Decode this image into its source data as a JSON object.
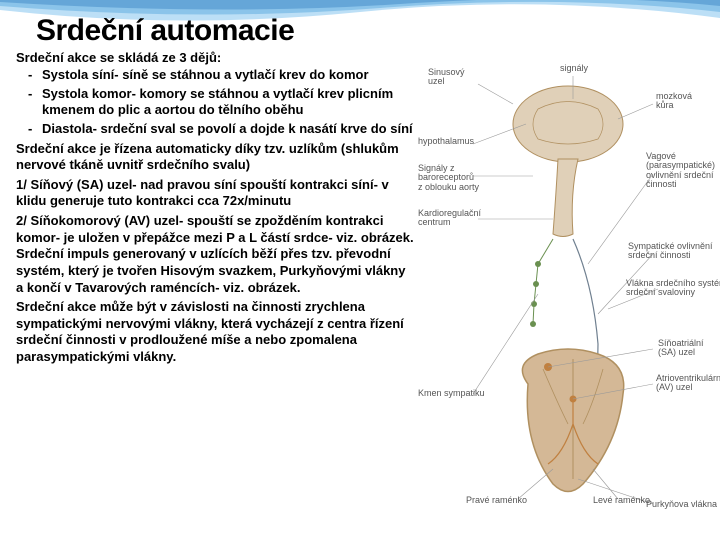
{
  "title": "Srdeční automacie",
  "subtitle": "Srdeční akce se skládá ze 3 dějů:",
  "bullets": [
    "Systola síní- síně se stáhnou a vytlačí krev do komor",
    "Systola komor- komory se stáhnou a vytlačí krev plicním kmenem do plic a aortou do tělního oběhu",
    "Diastola- srdeční sval se povolí a dojde k nasátí krve do síní"
  ],
  "paragraphs": [
    "Srdeční akce je řízena automaticky díky tzv. uzlíkům (shlukům nervové tkáně uvnitř srdečního svalu)",
    "1/ Síňový (SA) uzel- nad pravou síní spouští kontrakci síní- v klidu generuje tuto kontrakci cca 72x/minutu",
    "2/ Síňokomorový (AV) uzel- spouští se zpožděním kontrakci komor- je uložen v přepážce mezi P a L částí srdce- viz. obrázek. Srdeční impuls generovaný v uzlících běží přes tzv. převodní systém, který je tvořen Hisovým svazkem, Purkyňovými vlákny a končí v Tavarových raméncích- viz. obrázek.",
    "Srdeční akce může být v závislosti na činnosti zrychlena sympatickými nervovými vlákny, která vycházejí z centra řízení srdeční činnosti v prodloužené míše a nebo zpomalena parasympatickými vlákny."
  ],
  "diagram_labels": {
    "sinusovy": "Sinusový\nuzel",
    "signaly": "signály",
    "hypothalamus": "hypothalamus",
    "mozkova": "mozková\nkůra",
    "baroreceptor": "Signály z\nbaroreceptorů\nz oblouku aorty",
    "kardioreg": "Kardioregulační\ncentrum",
    "vagove": "Vagové\n(parasympatické)\novlivnění srdeční\nčinnosti",
    "sympaticke": "Sympatické ovlivnění\nsrdeční činnosti",
    "vlakna": "Vlákna srdečního systému\nsrdeční svaloviny",
    "sa_uzel": "Síňoatriální\n(SA) uzel",
    "av_uzel": "Atrioventrikulární\n(AV) uzel",
    "sympatiku": "Kmen sympatiku",
    "prave": "Pravé raménko",
    "leve": "Levé raménko",
    "purkyn": "Purkyňova vlákna"
  },
  "colors": {
    "title_color": "#000000",
    "text_color": "#000000",
    "wave_light": "#8fc9f0",
    "wave_mid": "#5aa9de",
    "wave_dark": "#2c7bbf",
    "heart_fill": "#d4b896",
    "heart_outline": "#b09060",
    "brain_fill": "#e0d0b8",
    "line_color": "#7090a0",
    "green_line": "#6a9050"
  }
}
